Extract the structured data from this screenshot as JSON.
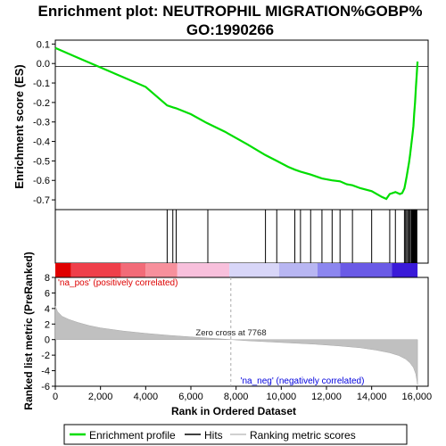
{
  "chart_data": {
    "type": "line",
    "title_line1": "Enrichment plot: NEUTROPHIL MIGRATION%GOBP%",
    "title_line2": "GO:1990266",
    "top_ylabel": "Enrichment score (ES)",
    "bottom_ylabel": "Ranked list metric (PreRanked)",
    "xlabel": "Rank in Ordered Dataset",
    "es_ylim": [
      -0.75,
      0.12
    ],
    "es_yticks": [
      0.1,
      0.0,
      -0.1,
      -0.2,
      -0.3,
      -0.4,
      -0.5,
      -0.6,
      -0.7
    ],
    "es_ytick_labels": [
      "0.1",
      "0.0",
      "-0.1",
      "-0.2",
      "-0.3",
      "-0.4",
      "-0.5",
      "-0.6",
      "-0.7"
    ],
    "xlim": [
      0,
      16500
    ],
    "xticks": [
      0,
      2000,
      4000,
      6000,
      8000,
      10000,
      12000,
      14000,
      16000
    ],
    "xtick_labels": [
      "0",
      "2,000",
      "4,000",
      "6,000",
      "8,000",
      "10,000",
      "12,000",
      "14,000",
      "16,000"
    ],
    "metric_ylim": [
      -6,
      8
    ],
    "metric_yticks": [
      8,
      6,
      4,
      2,
      0,
      -2,
      -4,
      -6
    ],
    "metric_ytick_labels": [
      "8",
      "6",
      "4",
      "2",
      "0",
      "-2",
      "-4",
      "-6"
    ],
    "enrichment_profile": {
      "x": [
        0,
        1000,
        2000,
        3000,
        4000,
        4950,
        5200,
        5350,
        6000,
        6700,
        7500,
        8500,
        9300,
        9800,
        10300,
        10600,
        10850,
        11300,
        11800,
        12250,
        12600,
        12900,
        13150,
        13500,
        14000,
        14450,
        14650,
        14800,
        15050,
        15250,
        15350,
        15450,
        15500,
        15550,
        15600,
        15650,
        15700,
        15750,
        15800,
        15850,
        15880,
        15920,
        15960,
        16000,
        16030
      ],
      "y": [
        0.08,
        0.03,
        -0.02,
        -0.07,
        -0.12,
        -0.215,
        -0.225,
        -0.23,
        -0.26,
        -0.305,
        -0.35,
        -0.415,
        -0.47,
        -0.5,
        -0.53,
        -0.545,
        -0.555,
        -0.57,
        -0.59,
        -0.6,
        -0.605,
        -0.62,
        -0.625,
        -0.64,
        -0.655,
        -0.685,
        -0.695,
        -0.67,
        -0.66,
        -0.67,
        -0.665,
        -0.64,
        -0.61,
        -0.58,
        -0.545,
        -0.51,
        -0.47,
        -0.42,
        -0.37,
        -0.32,
        -0.26,
        -0.2,
        -0.12,
        -0.05,
        0.01
      ]
    },
    "hits": [
      4950,
      5200,
      5350,
      6750,
      9300,
      9800,
      10600,
      10850,
      11300,
      11800,
      12250,
      12600,
      13150,
      14000,
      14800,
      15050,
      15450,
      15500,
      15550,
      15600,
      15650,
      15700,
      15750,
      15780,
      15800,
      15830,
      15850,
      15870,
      15900,
      15920,
      15950,
      15980,
      16000
    ],
    "metric_curve": {
      "x": [
        0,
        100,
        300,
        600,
        1000,
        1500,
        2000,
        3000,
        4000,
        5000,
        6000,
        7000,
        7768,
        8500,
        9500,
        10500,
        11500,
        12500,
        13500,
        14200,
        14800,
        15200,
        15500,
        15700,
        15850,
        15950,
        16000,
        16030
      ],
      "y": [
        4.3,
        3.6,
        3.0,
        2.6,
        2.2,
        1.8,
        1.5,
        1.1,
        0.8,
        0.55,
        0.35,
        0.15,
        0.0,
        -0.15,
        -0.3,
        -0.45,
        -0.6,
        -0.8,
        -1.05,
        -1.35,
        -1.7,
        -2.05,
        -2.5,
        -3.0,
        -3.6,
        -4.4,
        -5.2,
        -5.8
      ]
    },
    "zero_cross_rank": 7768,
    "zero_cross_label": "Zero cross at 7768",
    "pos_label": "'na_pos' (positively correlated)",
    "neg_label": "'na_neg' (negatively correlated)",
    "legend": [
      "Enrichment profile",
      "Hits",
      "Ranking metric scores"
    ],
    "legend_placement": "bottom",
    "colors": {
      "profile": "#00dd00",
      "hits": "#000000",
      "metric_fill": "#c0c0c0",
      "pos_label": "#dd0000",
      "neg_label": "#0000dd",
      "zero_line": "#aaaaaa"
    },
    "ranked_bar_segments": [
      {
        "from": 0,
        "to": 700,
        "color": "#e00000"
      },
      {
        "from": 700,
        "to": 2900,
        "color": "#ef3f4a"
      },
      {
        "from": 2900,
        "to": 4000,
        "color": "#f26b78"
      },
      {
        "from": 4000,
        "to": 5400,
        "color": "#f7909c"
      },
      {
        "from": 5400,
        "to": 7700,
        "color": "#f8c0dc"
      },
      {
        "from": 7700,
        "to": 9900,
        "color": "#d8d6f8"
      },
      {
        "from": 9900,
        "to": 11600,
        "color": "#b8b6f2"
      },
      {
        "from": 11600,
        "to": 12600,
        "color": "#8c86ef"
      },
      {
        "from": 12600,
        "to": 14900,
        "color": "#6a5ae6"
      },
      {
        "from": 14900,
        "to": 16030,
        "color": "#3a1ad8"
      }
    ]
  }
}
